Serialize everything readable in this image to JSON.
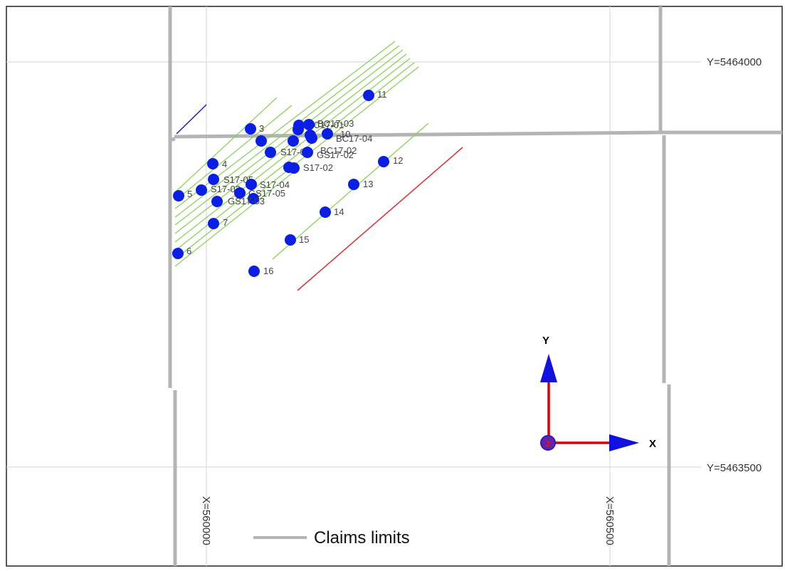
{
  "grid": {
    "y_labels": [
      "Y=5464000",
      "Y=5463500"
    ],
    "x_labels": [
      "X=560000",
      "X=560500"
    ]
  },
  "colors": {
    "grid": "#dcdcdc",
    "claims": "#b4b4b4",
    "survey_line": "#7fd14f",
    "red_line": "#d93030",
    "blue_line": "#2020c0",
    "hole": "#0a1ee6",
    "axis_arrow": "#1010e0",
    "axis_stem": "#e00000"
  },
  "holes": [
    {
      "label": "11"
    },
    {
      "label": "3"
    },
    {
      "label": "BC17-01"
    },
    {
      "label": "BC17-03"
    },
    {
      "label": "BC17-04"
    },
    {
      "label": "10"
    },
    {
      "label": "S17-01"
    },
    {
      "label": "BC17-02"
    },
    {
      "label": "S17-02"
    },
    {
      "label": "12"
    },
    {
      "label": "4"
    },
    {
      "label": "GS17-02"
    },
    {
      "label": "S17-05"
    },
    {
      "label": "S17-04"
    },
    {
      "label": "5"
    },
    {
      "label": "S17-03"
    },
    {
      "label": "GS17-05"
    },
    {
      "label": "GS17-03"
    },
    {
      "label": "13"
    },
    {
      "label": "14"
    },
    {
      "label": "7"
    },
    {
      "label": "15"
    },
    {
      "label": "6"
    },
    {
      "label": "16"
    }
  ],
  "axes": {
    "y_label": "Y",
    "x_label": "X",
    "z_label": "Z"
  },
  "legend": {
    "label": "Claims limits",
    "icon": "legend-line-icon"
  }
}
